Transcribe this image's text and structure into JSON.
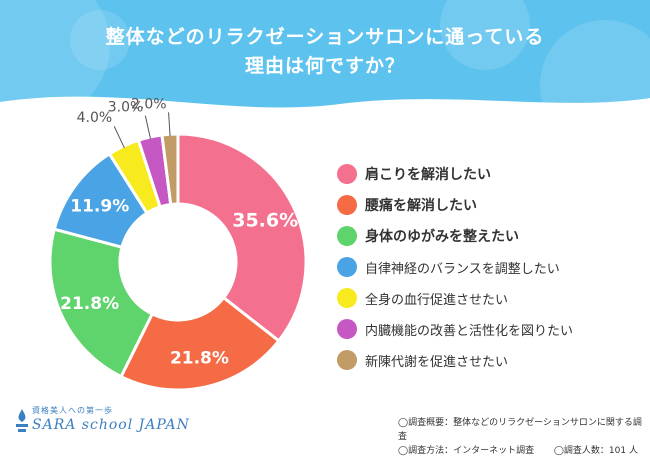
{
  "header": {
    "title_line1": "整体などのリラクゼーションサロンに通っている",
    "title_line2": "理由は何ですか？"
  },
  "chart_data": {
    "type": "pie",
    "title": "整体などのリラクゼーションサロンに通っている理由は何ですか？",
    "unit": "%",
    "slices": [
      {
        "label": "肩こりを解消したい",
        "value": 35.6,
        "display": "35.6%",
        "color": "#f3708f",
        "emphasis": true
      },
      {
        "label": "腰痛を解消したい",
        "value": 21.8,
        "display": "21.8%",
        "color": "#f46b45",
        "emphasis": true
      },
      {
        "label": "身体のゆがみを整えたい",
        "value": 21.8,
        "display": "21.8%",
        "color": "#5fd36c",
        "emphasis": true
      },
      {
        "label": "自律神経のバランスを調整したい",
        "value": 11.9,
        "display": "11.9%",
        "color": "#4aa3e4",
        "emphasis": false
      },
      {
        "label": "全身の血行促進させたい",
        "value": 4.0,
        "display": "4.0%",
        "color": "#f7ea1e",
        "emphasis": false
      },
      {
        "label": "内臓機能の改善と活性化を図りたい",
        "value": 3.0,
        "display": "3.0%",
        "color": "#c658c4",
        "emphasis": false
      },
      {
        "label": "新陳代謝を促進させたい",
        "value": 2.0,
        "display": "2.0%",
        "color": "#c29c66",
        "emphasis": false
      }
    ],
    "legend_position": "right"
  },
  "logo": {
    "tagline": "資格美人への第一歩",
    "name": "SARA school JAPAN"
  },
  "survey": {
    "overview": "◯調査概要：整体などのリラクゼーションサロンに関する調査",
    "method": "◯調査方法：インターネット調査",
    "count": "◯調査人数：101 人"
  }
}
